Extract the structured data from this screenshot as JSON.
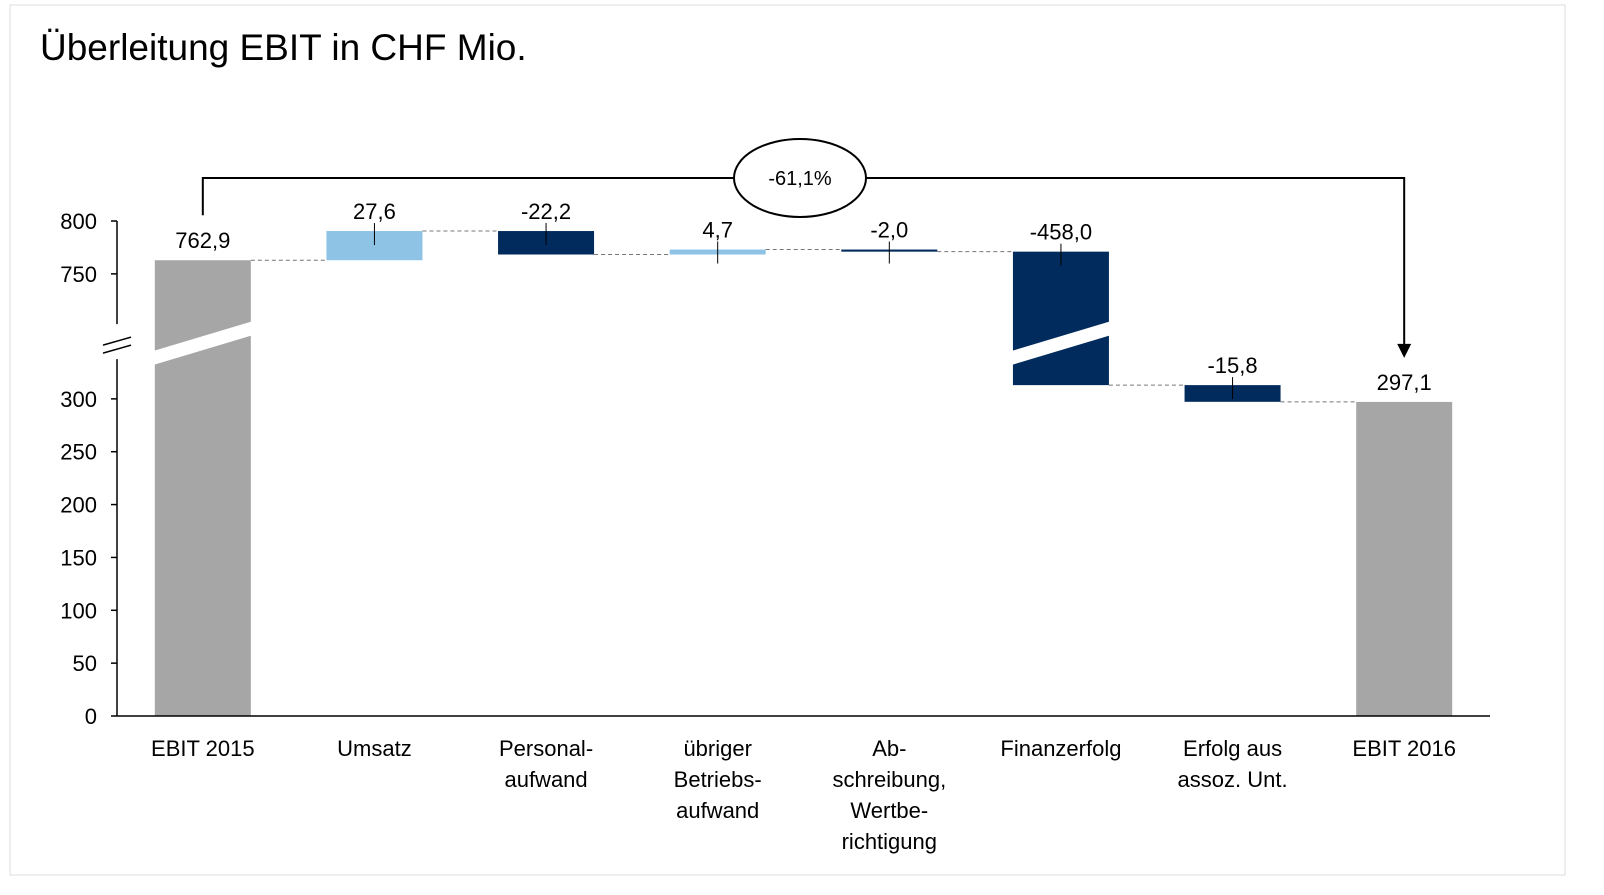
{
  "chart_data": {
    "type": "waterfall",
    "title": "Überleitung EBIT in CHF Mio.",
    "categories": [
      [
        "EBIT 2015"
      ],
      [
        "Umsatz"
      ],
      [
        "Personal-",
        "aufwand"
      ],
      [
        "übriger",
        "Betriebs-",
        "aufwand"
      ],
      [
        "Ab-",
        "schreibung,",
        "Wertbe-",
        "richtigung"
      ],
      [
        "Finanzerfolg"
      ],
      [
        "Erfolg aus",
        "assoz. Unt."
      ],
      [
        "EBIT 2016"
      ]
    ],
    "values": [
      762.9,
      27.6,
      -22.2,
      4.7,
      -2.0,
      -458.0,
      -15.8,
      297.1
    ],
    "value_labels": [
      "762,9",
      "27,6",
      "-22,2",
      "4,7",
      "-2,0",
      "-458,0",
      "-15,8",
      "297,1"
    ],
    "measure": [
      "total",
      "relative",
      "relative",
      "relative",
      "relative",
      "relative",
      "relative",
      "total"
    ],
    "colors": {
      "total": "#a6a6a6",
      "increase": "#8ec3e6",
      "decrease": "#002b5c"
    },
    "ylim": [
      0,
      800
    ],
    "yticks": [
      0,
      50,
      100,
      150,
      200,
      250,
      300,
      750,
      800
    ],
    "axis_break": [
      330,
      710
    ],
    "annotation": "-61,1%"
  }
}
